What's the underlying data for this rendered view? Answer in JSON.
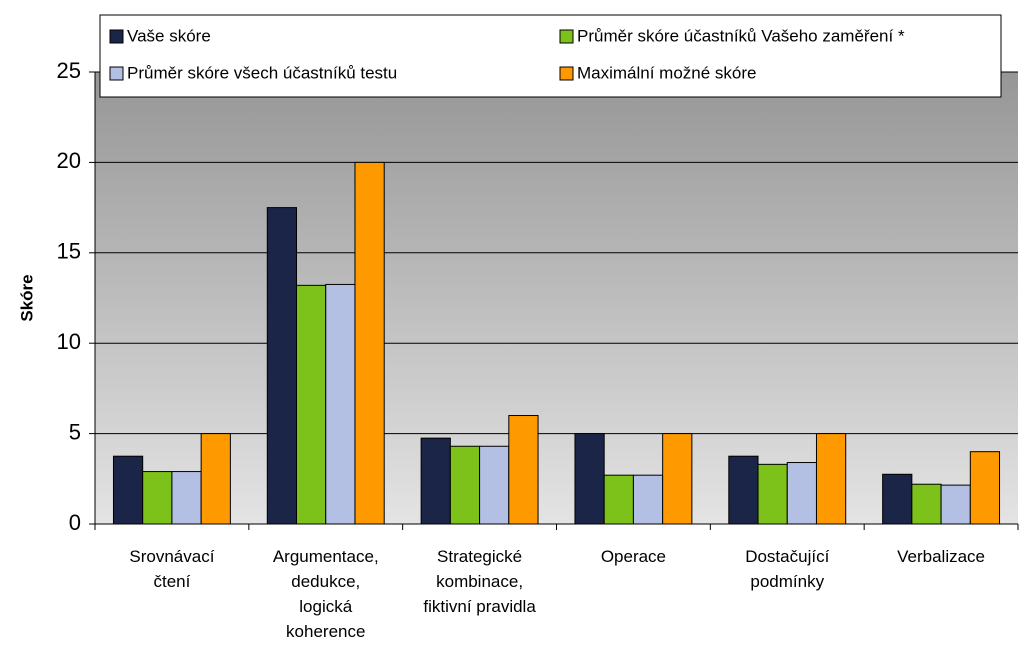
{
  "chart_data": {
    "type": "bar",
    "ylabel": "Skóre",
    "categories": [
      [
        "Srovnávací",
        "čtení"
      ],
      [
        "Argumentace,",
        "dedukce,",
        "logická",
        "koherence"
      ],
      [
        "Strategické",
        "kombinace,",
        "fiktivní pravidla"
      ],
      [
        "Operace"
      ],
      [
        "Dostačující",
        "podmínky"
      ],
      [
        "Verbalizace"
      ]
    ],
    "series": [
      {
        "name": "Vaše skóre",
        "color": "#1b2547",
        "values": [
          3.75,
          17.5,
          4.75,
          5,
          3.75,
          2.75
        ]
      },
      {
        "name": "Průměr skóre účastníků Vašeho zaměření *",
        "color": "#7cc21a",
        "values": [
          2.9,
          13.2,
          4.3,
          2.7,
          3.3,
          2.2
        ]
      },
      {
        "name": "Průměr skóre všech účastníků testu",
        "color": "#b3bfe3",
        "values": [
          2.9,
          13.25,
          4.3,
          2.7,
          3.4,
          2.15
        ]
      },
      {
        "name": "Maximální možné skóre",
        "color": "#ff9900",
        "values": [
          5,
          20,
          6,
          5,
          5,
          4
        ]
      }
    ],
    "ylim": [
      0,
      25
    ],
    "yticks": [
      0,
      5,
      10,
      15,
      20,
      25
    ],
    "grid": true
  }
}
